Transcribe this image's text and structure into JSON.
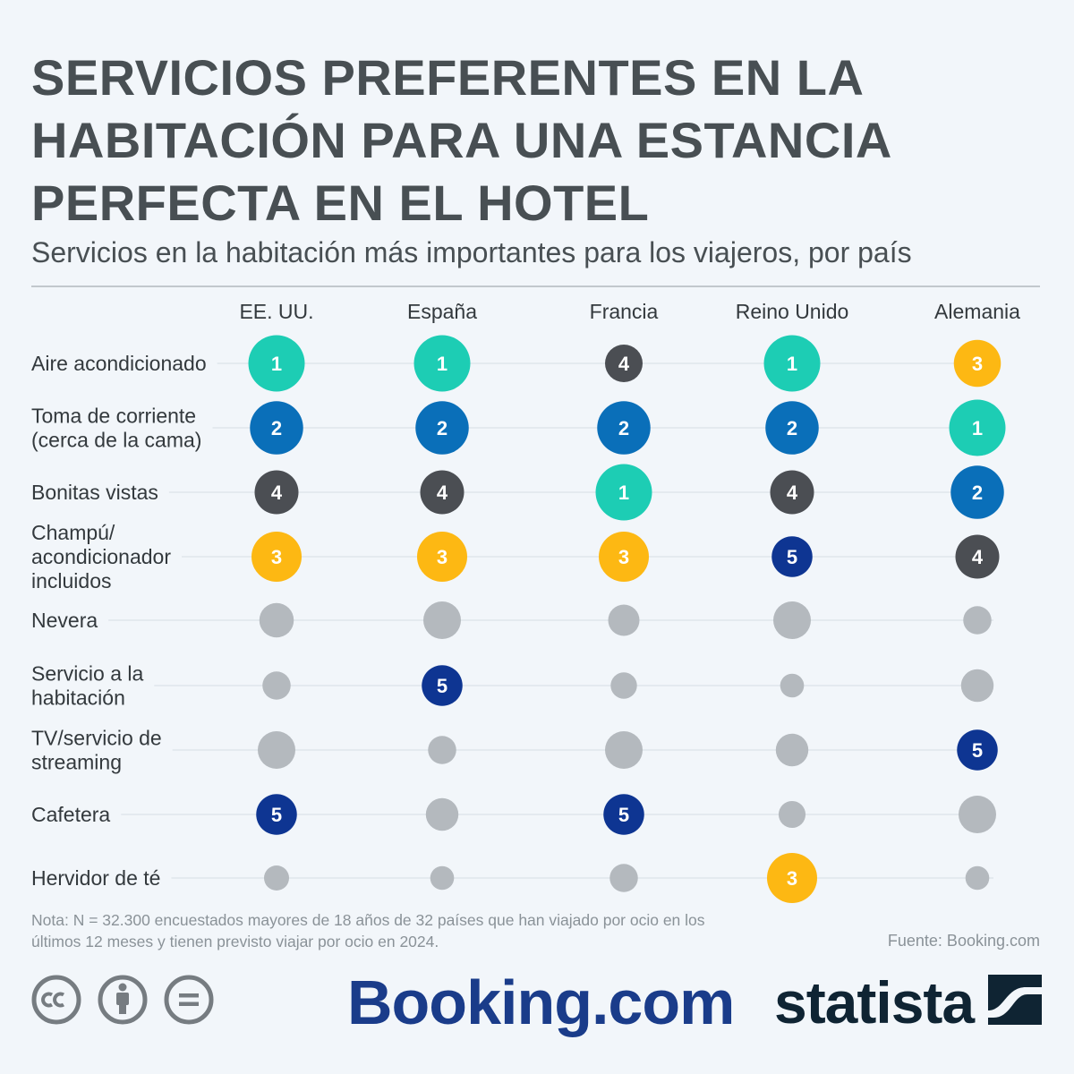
{
  "title": "SERVICIOS PREFERENTES EN LA HABITACIÓN PARA UNA ESTANCIA PERFECTA EN EL HOTEL",
  "subtitle": "Servicios en la habitación más importantes para los viajeros, por país",
  "chart_data": {
    "type": "table",
    "columns": [
      "EE. UU.",
      "España",
      "Francia",
      "Reino Unido",
      "Alemania"
    ],
    "rows": [
      {
        "label": [
          "Aire acondicionado"
        ],
        "ranks": [
          1,
          1,
          4,
          1,
          3
        ],
        "sizes": [
          0.9,
          0.9,
          0.6,
          0.9,
          0.75
        ]
      },
      {
        "label": [
          "Toma de corriente",
          "(cerca de la cama)"
        ],
        "ranks": [
          2,
          2,
          2,
          2,
          1
        ],
        "sizes": [
          0.85,
          0.85,
          0.85,
          0.85,
          0.9
        ]
      },
      {
        "label": [
          "Bonitas vistas"
        ],
        "ranks": [
          4,
          4,
          1,
          4,
          2
        ],
        "sizes": [
          0.7,
          0.7,
          0.9,
          0.7,
          0.85
        ]
      },
      {
        "label": [
          "Champú/",
          "acondicionador",
          "incluidos"
        ],
        "ranks": [
          3,
          3,
          3,
          5,
          4
        ],
        "sizes": [
          0.8,
          0.8,
          0.8,
          0.65,
          0.7
        ]
      },
      {
        "label": [
          "Nevera"
        ],
        "ranks": [
          null,
          null,
          null,
          null,
          null
        ],
        "sizes": [
          0.55,
          0.6,
          0.5,
          0.6,
          0.45
        ]
      },
      {
        "label": [
          "Servicio a la",
          "habitación"
        ],
        "ranks": [
          null,
          5,
          null,
          null,
          null
        ],
        "sizes": [
          0.45,
          0.65,
          0.42,
          0.38,
          0.52
        ]
      },
      {
        "label": [
          "TV/servicio de",
          "streaming"
        ],
        "ranks": [
          null,
          null,
          null,
          null,
          5
        ],
        "sizes": [
          0.6,
          0.45,
          0.6,
          0.52,
          0.65
        ]
      },
      {
        "label": [
          "Cafetera"
        ],
        "ranks": [
          5,
          null,
          5,
          null,
          null
        ],
        "sizes": [
          0.65,
          0.52,
          0.65,
          0.43,
          0.6
        ]
      },
      {
        "label": [
          "Hervidor de té"
        ],
        "ranks": [
          null,
          null,
          null,
          3,
          null
        ],
        "sizes": [
          0.4,
          0.38,
          0.45,
          0.8,
          0.38
        ]
      }
    ],
    "rank_colors": {
      "1": "#1dcdb4",
      "2": "#0a6fb9",
      "3": "#fdb813",
      "4": "#4b4e53",
      "5": "#0e3592",
      "none": "#b4b9be"
    }
  },
  "note": "Nota: N = 32.300 encuestados mayores de 18 años de 32 países que han viajado por ocio en los últimos 12 meses y tienen previsto viajar por ocio en 2024.",
  "source": "Fuente: Booking.com",
  "logos": {
    "booking": "Booking.com",
    "statista": "statista"
  },
  "license_icons": [
    "cc-icon",
    "attribution-icon",
    "no-derivatives-icon"
  ]
}
